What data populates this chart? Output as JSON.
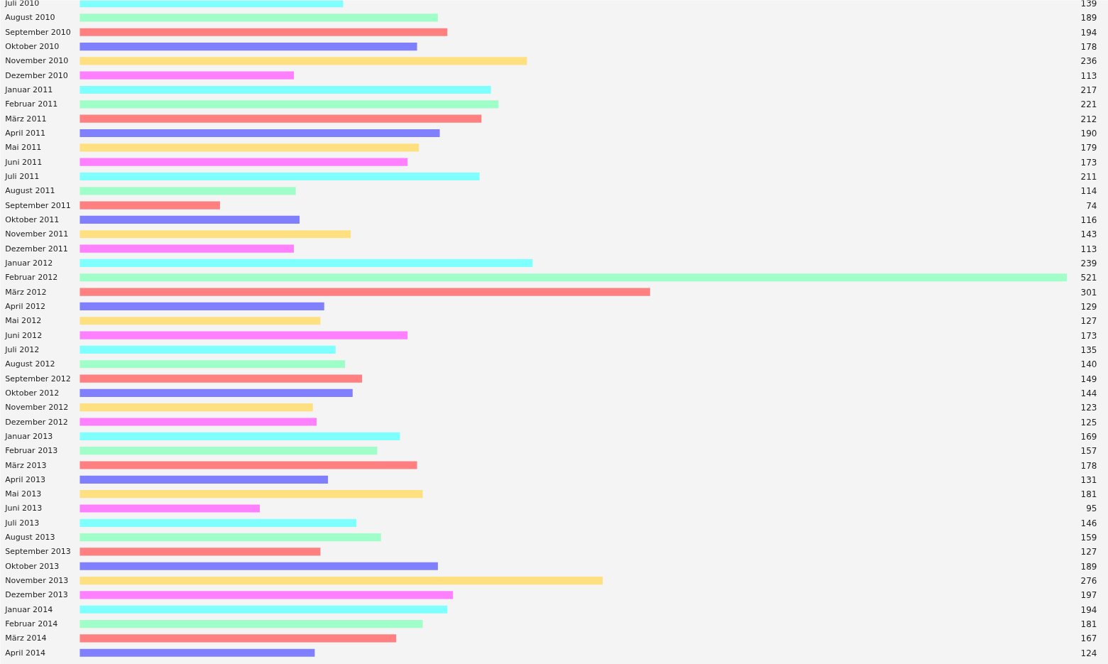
{
  "chart_data": {
    "type": "bar",
    "orientation": "horizontal",
    "data_labels": true,
    "tick_labels": "y",
    "grid": false,
    "categories": [
      "Juli 2010",
      "August 2010",
      "September 2010",
      "Oktober 2010",
      "November 2010",
      "Dezember 2010",
      "Januar 2011",
      "Februar 2011",
      "März 2011",
      "April 2011",
      "Mai 2011",
      "Juni 2011",
      "Juli 2011",
      "August 2011",
      "September 2011",
      "Oktober 2011",
      "November 2011",
      "Dezember 2011",
      "Januar 2012",
      "Februar 2012",
      "März 2012",
      "April 2012",
      "Mai 2012",
      "Juni 2012",
      "Juli 2012",
      "August 2012",
      "September 2012",
      "Oktober 2012",
      "November 2012",
      "Dezember 2012",
      "Januar 2013",
      "Februar 2013",
      "März 2013",
      "April 2013",
      "Mai 2013",
      "Juni 2013",
      "Juli 2013",
      "August 2013",
      "September 2013",
      "Oktober 2013",
      "November 2013",
      "Dezember 2013",
      "Januar 2014",
      "Februar 2014",
      "März 2014",
      "April 2014"
    ],
    "values": [
      139,
      189,
      194,
      178,
      236,
      113,
      217,
      221,
      212,
      190,
      179,
      173,
      211,
      114,
      74,
      116,
      143,
      113,
      239,
      521,
      301,
      129,
      127,
      173,
      135,
      140,
      149,
      144,
      123,
      125,
      169,
      157,
      178,
      131,
      181,
      95,
      146,
      159,
      127,
      189,
      276,
      197,
      194,
      181,
      167,
      124
    ],
    "colors": [
      "#80ffff",
      "#a0ffc8",
      "#ff8080",
      "#8080ff",
      "#ffe080",
      "#ff80ff",
      "#80ffff",
      "#a0ffc8",
      "#ff8080",
      "#8080ff",
      "#ffe080",
      "#ff80ff",
      "#80ffff",
      "#a0ffc8",
      "#ff8080",
      "#8080ff",
      "#ffe080",
      "#ff80ff",
      "#80ffff",
      "#a0ffc8",
      "#ff8080",
      "#8080ff",
      "#ffe080",
      "#ff80ff",
      "#80ffff",
      "#a0ffc8",
      "#ff8080",
      "#8080ff",
      "#ffe080",
      "#ff80ff",
      "#80ffff",
      "#a0ffc8",
      "#ff8080",
      "#8080ff",
      "#ffe080",
      "#ff80ff",
      "#80ffff",
      "#a0ffc8",
      "#ff8080",
      "#8080ff",
      "#ffe080",
      "#ff80ff",
      "#80ffff",
      "#a0ffc8",
      "#ff8080",
      "#8080ff"
    ]
  }
}
